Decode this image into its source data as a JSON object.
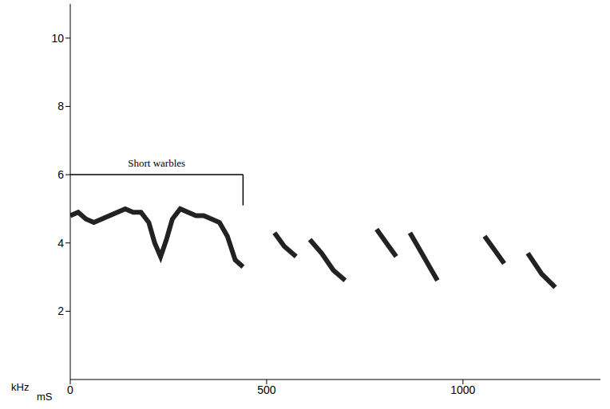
{
  "chart_data": {
    "type": "line",
    "xlabel": "mS",
    "ylabel": "kHz",
    "x": [
      0,
      20,
      40,
      60,
      80,
      100,
      120,
      140,
      160,
      180,
      200,
      215,
      230,
      245,
      260,
      280,
      300,
      320,
      340,
      360,
      380,
      400,
      420,
      440,
      480,
      520,
      545,
      575,
      590,
      610,
      640,
      670,
      700,
      740,
      780,
      805,
      830,
      850,
      865,
      890,
      915,
      935,
      1000,
      1055,
      1080,
      1105,
      1135,
      1165,
      1200,
      1235
    ],
    "values": [
      4.8,
      4.9,
      4.7,
      4.6,
      4.7,
      4.8,
      4.9,
      5.0,
      4.9,
      4.9,
      4.6,
      4.0,
      3.6,
      4.1,
      4.7,
      5.0,
      4.9,
      4.8,
      4.8,
      4.7,
      4.6,
      4.2,
      3.5,
      3.3,
      null,
      4.3,
      3.9,
      3.6,
      null,
      4.1,
      3.7,
      3.2,
      2.9,
      null,
      4.4,
      4.0,
      3.6,
      null,
      4.3,
      3.8,
      3.3,
      2.9,
      null,
      4.2,
      3.8,
      3.4,
      null,
      3.7,
      3.1,
      2.7
    ],
    "color": "#222222",
    "xlim": [
      0,
      1350
    ],
    "ylim": [
      0,
      11
    ],
    "xticks": [
      0,
      500,
      1000
    ],
    "yticks": [
      2,
      4,
      6,
      8,
      10
    ],
    "grid": false,
    "annotations": [
      {
        "text": "Short warbles",
        "x": [
          0,
          440
        ],
        "y": 6,
        "y_end": 5.1
      }
    ]
  }
}
